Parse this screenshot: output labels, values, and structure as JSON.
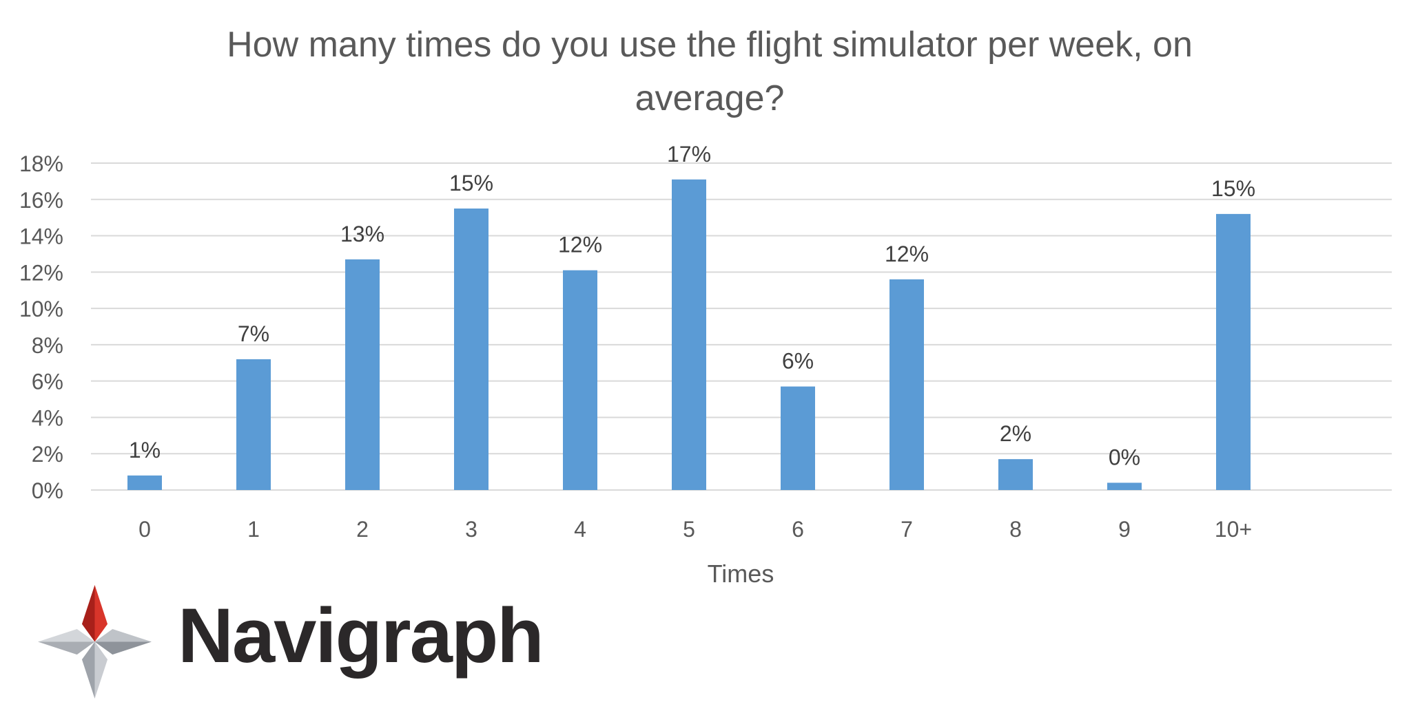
{
  "chart_data": {
    "type": "bar",
    "title_lines": [
      "How many times do you use the flight simulator per week, on",
      "average?"
    ],
    "xlabel": "Times",
    "ylabel": "",
    "categories": [
      "0",
      "1",
      "2",
      "3",
      "4",
      "5",
      "6",
      "7",
      "8",
      "9",
      "10+"
    ],
    "values": [
      0.8,
      7.2,
      12.7,
      15.5,
      12.1,
      17.1,
      5.7,
      11.6,
      1.7,
      0.4,
      15.2
    ],
    "data_labels": [
      "1%",
      "7%",
      "13%",
      "15%",
      "12%",
      "17%",
      "6%",
      "12%",
      "2%",
      "0%",
      "15%"
    ],
    "yticks": [
      "0%",
      "2%",
      "4%",
      "6%",
      "8%",
      "10%",
      "12%",
      "14%",
      "16%",
      "18%"
    ],
    "ylim": [
      0,
      18
    ],
    "grid": true,
    "legend": "none",
    "colors": {
      "bar": "#5b9bd5",
      "grid": "#d9d9d9",
      "text": "#595959",
      "label": "#404040"
    }
  },
  "brand": {
    "name": "Navigraph",
    "logo_icon": "navigraph-compass-star-icon"
  }
}
